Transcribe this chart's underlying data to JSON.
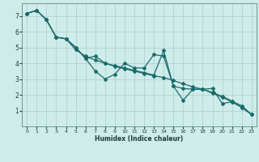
{
  "xlabel": "Humidex (Indice chaleur)",
  "background_color": "#ceecea",
  "grid_color": "#aed4d2",
  "line_color": "#1a6b6b",
  "xlim": [
    -0.5,
    23.5
  ],
  "ylim": [
    0,
    7.8
  ],
  "xticks": [
    0,
    1,
    2,
    3,
    4,
    5,
    6,
    7,
    8,
    9,
    10,
    11,
    12,
    13,
    14,
    15,
    16,
    17,
    18,
    19,
    20,
    21,
    22,
    23
  ],
  "yticks": [
    1,
    2,
    3,
    4,
    5,
    6,
    7
  ],
  "series1_x": [
    0,
    1,
    2,
    3,
    4,
    5,
    6,
    7,
    8,
    9,
    10,
    11,
    12,
    13,
    14,
    15,
    16,
    17,
    18,
    19,
    20,
    21,
    22,
    23
  ],
  "series1_y": [
    7.15,
    7.35,
    6.75,
    5.65,
    5.55,
    5.0,
    4.3,
    3.5,
    3.0,
    3.3,
    4.0,
    3.7,
    3.7,
    4.55,
    4.45,
    2.55,
    1.65,
    2.35,
    2.35,
    2.4,
    1.45,
    1.55,
    1.2,
    0.75
  ],
  "series2_x": [
    0,
    1,
    2,
    3,
    4,
    5,
    6,
    7,
    8,
    9,
    10,
    11,
    12,
    13,
    14,
    15,
    16,
    17,
    18,
    19,
    20,
    21,
    22,
    23
  ],
  "series2_y": [
    7.15,
    7.35,
    6.75,
    5.65,
    5.55,
    5.0,
    4.3,
    4.45,
    4.0,
    3.85,
    3.7,
    3.55,
    3.4,
    3.25,
    4.8,
    2.55,
    2.4,
    2.35,
    2.35,
    2.1,
    1.85,
    1.55,
    1.2,
    0.75
  ],
  "series3_x": [
    0,
    1,
    2,
    3,
    4,
    5,
    6,
    7,
    8,
    9,
    10,
    11,
    12,
    13,
    14,
    15,
    16,
    17,
    18,
    19,
    20,
    21,
    22,
    23
  ],
  "series3_y": [
    7.15,
    7.35,
    6.75,
    5.65,
    5.55,
    4.85,
    4.45,
    4.2,
    4.0,
    3.8,
    3.65,
    3.5,
    3.35,
    3.2,
    3.1,
    2.9,
    2.7,
    2.5,
    2.35,
    2.15,
    1.9,
    1.6,
    1.3,
    0.75
  ]
}
